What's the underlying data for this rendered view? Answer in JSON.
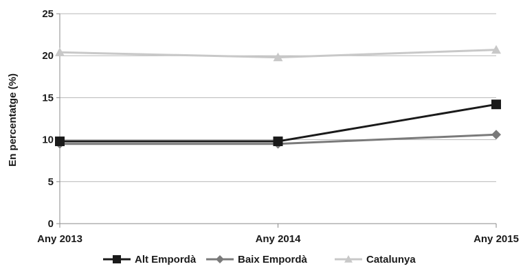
{
  "chart_data": {
    "type": "line",
    "categories": [
      "Any 2013",
      "Any 2014",
      "Any 2015"
    ],
    "ylabel": "En percentatge (%)",
    "ylim": [
      0,
      25
    ],
    "yticks": [
      0,
      5,
      10,
      15,
      20,
      25
    ],
    "grid": true,
    "legend_position": "bottom",
    "series": [
      {
        "name": "Alt Empordà",
        "values": [
          9.8,
          9.8,
          14.2
        ],
        "color": "#1a1a1a",
        "marker": "square"
      },
      {
        "name": "Baix Empordà",
        "values": [
          9.5,
          9.5,
          10.6
        ],
        "color": "#7a7a7a",
        "marker": "diamond"
      },
      {
        "name": "Catalunya",
        "values": [
          20.4,
          19.8,
          20.7
        ],
        "color": "#c8c8c8",
        "marker": "triangle"
      }
    ]
  }
}
